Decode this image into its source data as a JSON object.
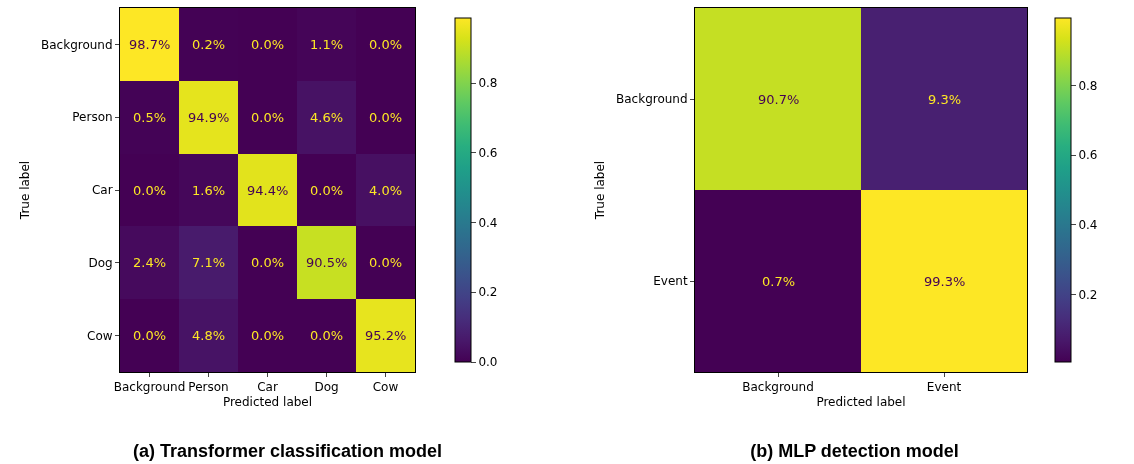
{
  "chart_data": [
    {
      "type": "heatmap",
      "title": "(a) Transformer classification model",
      "xlabel": "Predicted label",
      "ylabel": "True label",
      "categories": [
        "Background",
        "Person",
        "Car",
        "Dog",
        "Cow"
      ],
      "y_categories": [
        "Background",
        "Person",
        "Car",
        "Dog",
        "Cow"
      ],
      "cells": [
        [
          0.987,
          0.002,
          0.0,
          0.011,
          0.0
        ],
        [
          0.005,
          0.949,
          0.0,
          0.046,
          0.0
        ],
        [
          0.0,
          0.016,
          0.944,
          0.0,
          0.04
        ],
        [
          0.024,
          0.071,
          0.0,
          0.905,
          0.0
        ],
        [
          0.0,
          0.048,
          0.0,
          0.0,
          0.952
        ]
      ],
      "cell_labels": [
        [
          "98.7%",
          "0.2%",
          "0.0%",
          "1.1%",
          "0.0%"
        ],
        [
          "0.5%",
          "94.9%",
          "0.0%",
          "4.6%",
          "0.0%"
        ],
        [
          "0.0%",
          "1.6%",
          "94.4%",
          "0.0%",
          "4.0%"
        ],
        [
          "2.4%",
          "7.1%",
          "0.0%",
          "90.5%",
          "0.0%"
        ],
        [
          "0.0%",
          "4.8%",
          "0.0%",
          "0.0%",
          "95.2%"
        ]
      ],
      "clim": [
        0.0,
        0.987
      ],
      "cticks": [
        {
          "value": 0.0,
          "label": "0.0"
        },
        0.2,
        0.4,
        0.6,
        0.8
      ]
    },
    {
      "type": "heatmap",
      "title": "(b) MLP detection model",
      "xlabel": "Predicted label",
      "ylabel": "True label",
      "categories": [
        "Background",
        "Event"
      ],
      "y_categories": [
        "Background",
        "Event"
      ],
      "cells": [
        [
          0.907,
          0.093
        ],
        [
          0.007,
          0.993
        ]
      ],
      "cell_labels": [
        [
          "90.7%",
          "9.3%"
        ],
        [
          "0.7%",
          "99.3%"
        ]
      ],
      "clim": [
        0.007,
        0.993
      ],
      "cticks": [
        0.2,
        0.4,
        0.6,
        0.8
      ]
    }
  ]
}
